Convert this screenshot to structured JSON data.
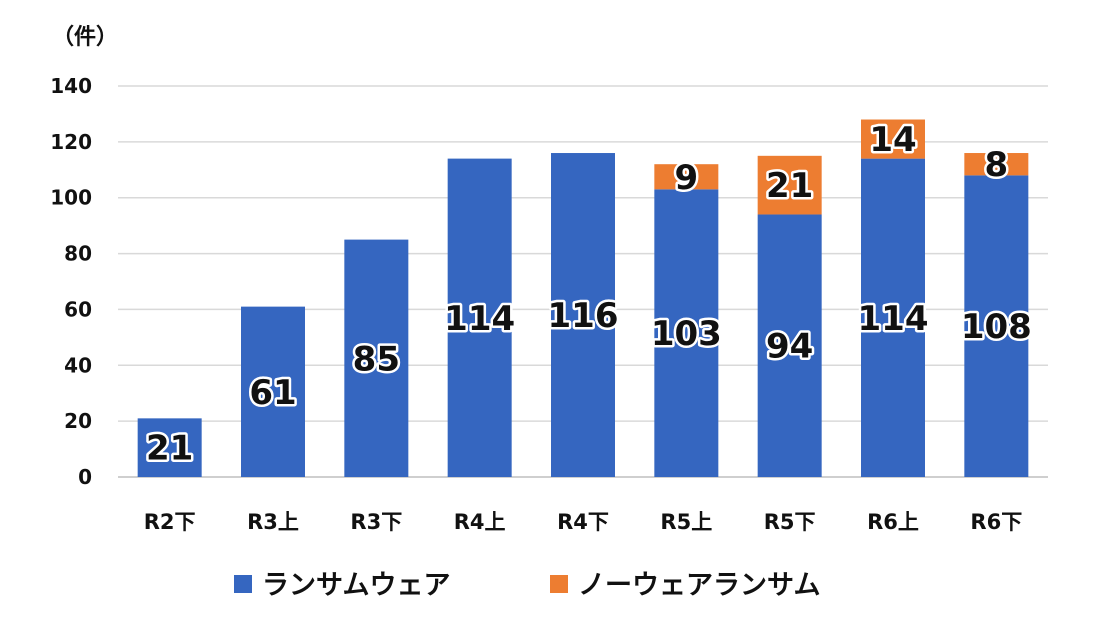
{
  "chart_data": {
    "type": "bar",
    "stacked": true,
    "unit_label": "（件）",
    "categories": [
      "R2下",
      "R3上",
      "R3下",
      "R4上",
      "R4下",
      "R5上",
      "R5下",
      "R6上",
      "R6下"
    ],
    "series": [
      {
        "name": "ランサムウェア",
        "color": "#3566c0",
        "values": [
          21,
          61,
          85,
          114,
          116,
          103,
          94,
          114,
          108
        ]
      },
      {
        "name": "ノーウェアランサム",
        "color": "#ed7d31",
        "values": [
          null,
          null,
          null,
          null,
          null,
          9,
          21,
          14,
          8
        ]
      }
    ],
    "ylim": [
      0,
      140
    ],
    "yticks": [
      0,
      20,
      40,
      60,
      80,
      100,
      120,
      140
    ],
    "grid": true,
    "legend": "bottom"
  }
}
